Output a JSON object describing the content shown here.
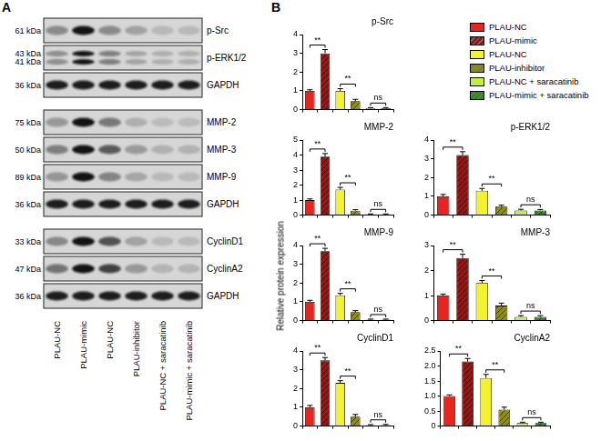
{
  "panels": {
    "a": {
      "label": "A",
      "lanes": [
        "PLAU-NC",
        "PLAU-mimic",
        "PLAU-NC",
        "PLAU-inhibitor",
        "PLAU-NC + saracatinib",
        "PLAU-mimic + saracatinib"
      ],
      "groups": [
        [
          {
            "name": "p-Src",
            "kda": [
              "61 kDa"
            ]
          },
          {
            "name": "p-ERK1/2",
            "kda": [
              "43 kDa",
              "41 kDa"
            ]
          },
          {
            "name": "GAPDH",
            "kda": [
              "36 kDa"
            ]
          }
        ],
        [
          {
            "name": "MMP-2",
            "kda": [
              "75 kDa"
            ]
          },
          {
            "name": "MMP-3",
            "kda": [
              "50 kDa"
            ]
          },
          {
            "name": "MMP-9",
            "kda": [
              "89 kDa"
            ]
          },
          {
            "name": "GAPDH",
            "kda": [
              "36 kDa"
            ]
          }
        ],
        [
          {
            "name": "CyclinD1",
            "kda": [
              "33 kDa"
            ]
          },
          {
            "name": "CyclinA2",
            "kda": [
              "47 kDa"
            ]
          },
          {
            "name": "GAPDH",
            "kda": [
              "36 kDa"
            ]
          }
        ]
      ]
    },
    "b": {
      "label": "B"
    }
  },
  "chart_data": [
    {
      "type": "bar",
      "title": "p-Src",
      "categories": [
        "PLAU-NC",
        "PLAU-mimic",
        "PLAU-NC",
        "PLAU-inhibitor",
        "PLAU-NC + saracatinib",
        "PLAU-mimic + saracatinib"
      ],
      "values": [
        1.0,
        3.0,
        1.0,
        0.45,
        0.08,
        0.08
      ],
      "errors": [
        0.06,
        0.2,
        0.12,
        0.1,
        0.03,
        0.03
      ],
      "colors": [
        "#e8241f",
        "#8b1a1a",
        "#f2f22e",
        "#8c8c1a",
        "#c5f03a",
        "#2e8b1e"
      ],
      "ylim": [
        0,
        4
      ],
      "yticks": [
        0,
        1,
        2,
        3,
        4
      ],
      "grid": false,
      "tick_labels": "y",
      "annotations": [
        "**",
        "**",
        "ns"
      ],
      "legend": "right"
    },
    {
      "type": "bar",
      "title": "MMP-2",
      "categories": [
        "PLAU-NC",
        "PLAU-mimic",
        "PLAU-NC",
        "PLAU-inhibitor",
        "PLAU-NC + saracatinib",
        "PLAU-mimic + saracatinib"
      ],
      "values": [
        1.0,
        3.9,
        1.7,
        0.3,
        0.05,
        0.05
      ],
      "errors": [
        0.08,
        0.2,
        0.15,
        0.06,
        0.03,
        0.03
      ],
      "colors": [
        "#e8241f",
        "#8b1a1a",
        "#f2f22e",
        "#8c8c1a",
        "#c5f03a",
        "#2e8b1e"
      ],
      "ylim": [
        0,
        5
      ],
      "yticks": [
        0,
        1,
        2,
        3,
        4,
        5
      ],
      "grid": false,
      "tick_labels": "y",
      "annotations": [
        "**",
        "**",
        "ns"
      ]
    },
    {
      "type": "bar",
      "title": "p-ERK1/2",
      "categories": [
        "PLAU-NC",
        "PLAU-mimic",
        "PLAU-NC",
        "PLAU-inhibitor",
        "PLAU-NC + saracatinib",
        "PLAU-mimic + saracatinib"
      ],
      "values": [
        1.0,
        3.2,
        1.3,
        0.45,
        0.25,
        0.25
      ],
      "errors": [
        0.1,
        0.18,
        0.12,
        0.08,
        0.06,
        0.05
      ],
      "colors": [
        "#e8241f",
        "#8b1a1a",
        "#f2f22e",
        "#8c8c1a",
        "#c5f03a",
        "#2e8b1e"
      ],
      "ylim": [
        0,
        4
      ],
      "yticks": [
        0,
        1,
        2,
        3,
        4
      ],
      "grid": false,
      "tick_labels": "y",
      "annotations": [
        "**",
        "**",
        "ns"
      ]
    },
    {
      "type": "bar",
      "title": "MMP-9",
      "ylabel": "Relative protein expression",
      "categories": [
        "PLAU-NC",
        "PLAU-mimic",
        "PLAU-NC",
        "PLAU-inhibitor",
        "PLAU-NC + saracatinib",
        "PLAU-mimic + saracatinib"
      ],
      "values": [
        1.0,
        3.7,
        1.35,
        0.45,
        0.05,
        0.05
      ],
      "errors": [
        0.08,
        0.15,
        0.1,
        0.08,
        0.03,
        0.03
      ],
      "colors": [
        "#e8241f",
        "#8b1a1a",
        "#f2f22e",
        "#8c8c1a",
        "#c5f03a",
        "#2e8b1e"
      ],
      "ylim": [
        0,
        4
      ],
      "yticks": [
        0,
        1,
        2,
        3,
        4
      ],
      "grid": false,
      "tick_labels": "y",
      "annotations": [
        "**",
        "**",
        "ns"
      ]
    },
    {
      "type": "bar",
      "title": "MMP-3",
      "categories": [
        "PLAU-NC",
        "PLAU-mimic",
        "PLAU-NC",
        "PLAU-inhibitor",
        "PLAU-NC + saracatinib",
        "PLAU-mimic + saracatinib"
      ],
      "values": [
        1.0,
        2.5,
        1.5,
        0.6,
        0.15,
        0.15
      ],
      "errors": [
        0.06,
        0.15,
        0.1,
        0.1,
        0.05,
        0.05
      ],
      "colors": [
        "#e8241f",
        "#8b1a1a",
        "#f2f22e",
        "#8c8c1a",
        "#c5f03a",
        "#2e8b1e"
      ],
      "ylim": [
        0,
        3
      ],
      "yticks": [
        0,
        1,
        2,
        3
      ],
      "grid": false,
      "tick_labels": "y",
      "annotations": [
        "**",
        "**",
        "ns"
      ]
    },
    {
      "type": "bar",
      "title": "CyclinD1",
      "categories": [
        "PLAU-NC",
        "PLAU-mimic",
        "PLAU-NC",
        "PLAU-inhibitor",
        "PLAU-NC + saracatinib",
        "PLAU-mimic + saracatinib"
      ],
      "values": [
        1.0,
        3.5,
        2.3,
        0.5,
        0.05,
        0.05
      ],
      "errors": [
        0.1,
        0.15,
        0.12,
        0.12,
        0.03,
        0.04
      ],
      "colors": [
        "#e8241f",
        "#8b1a1a",
        "#f2f22e",
        "#8c8c1a",
        "#c5f03a",
        "#2e8b1e"
      ],
      "ylim": [
        0,
        4
      ],
      "yticks": [
        0,
        1,
        2,
        3,
        4
      ],
      "grid": false,
      "tick_labels": "y",
      "annotations": [
        "**",
        "**",
        "ns"
      ]
    },
    {
      "type": "bar",
      "title": "CyclinA2",
      "categories": [
        "PLAU-NC",
        "PLAU-mimic",
        "PLAU-NC",
        "PLAU-inhibitor",
        "PLAU-NC + saracatinib",
        "PLAU-mimic + saracatinib"
      ],
      "values": [
        1.0,
        2.15,
        1.6,
        0.55,
        0.1,
        0.1
      ],
      "errors": [
        0.04,
        0.1,
        0.12,
        0.08,
        0.03,
        0.03
      ],
      "colors": [
        "#e8241f",
        "#8b1a1a",
        "#f2f22e",
        "#8c8c1a",
        "#c5f03a",
        "#2e8b1e"
      ],
      "ylim": [
        0,
        2.5
      ],
      "yticks": [
        0,
        0.5,
        {
          "value": 1,
          "label": "1.0"
        },
        1.5,
        {
          "value": 2,
          "label": "2.0"
        },
        2.5
      ],
      "grid": false,
      "tick_labels": "y",
      "annotations": [
        "**",
        "**",
        "ns"
      ]
    }
  ]
}
